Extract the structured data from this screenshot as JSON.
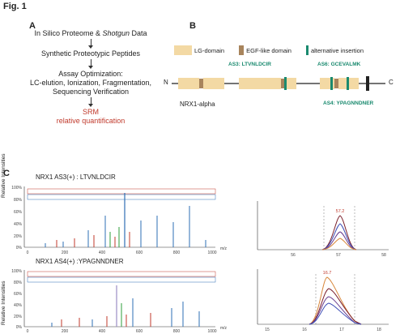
{
  "figure": {
    "title": "Fig. 1"
  },
  "panel_a": {
    "label": "A",
    "steps": [
      {
        "pre": "In Silico Proteome & ",
        "italic": "Shotgun",
        "post": " Data"
      },
      {
        "text": "Synthetic Proteotypic Peptides"
      },
      {
        "text": "Assay Optimization:"
      },
      {
        "text": "LC-elution, Ionization, Fragmentation,"
      },
      {
        "text": "Sequencing Verification"
      }
    ],
    "result_line1": "SRM",
    "result_line2": "relative quantification",
    "result_color": "#c0392b"
  },
  "panel_b": {
    "label": "B",
    "legend": [
      {
        "label": "LG-domain",
        "color": "#f3d9a4"
      },
      {
        "label": "EGF-like domain",
        "color": "#a8845c"
      },
      {
        "label": "alternative insertion",
        "color": "#1a8a6f"
      }
    ],
    "n_term": "N",
    "c_term": "C",
    "protein_name": "NRX1-alpha",
    "as3": "AS3: LTVNLDCIR",
    "as6": "AS6: GCEVALMK",
    "as4": "AS4: YPAGNNDNER"
  },
  "panel_c": {
    "label": "C",
    "spectrum1": {
      "title": "NRX1 AS3(+) : LTVNLDCIR",
      "ylabel": "Relative Intensities",
      "yticks": [
        "100%",
        "80%",
        "60%",
        "40%",
        "20%",
        "0%"
      ],
      "xticks": [
        "0",
        "200",
        "400",
        "600",
        "800",
        "1000"
      ],
      "xunit": "m/z"
    },
    "spectrum2": {
      "title": "NRX1 AS4(+) :YPAGNNDNER",
      "ylabel": "Relative Intensities",
      "yticks": [
        "100%",
        "80%",
        "60%",
        "40%",
        "20%",
        "0%"
      ],
      "xticks": [
        "0",
        "200",
        "400",
        "600",
        "800",
        "1000"
      ],
      "xunit": "m/z"
    },
    "chrom1": {
      "peak_label": "57.2",
      "xticks": [
        "56",
        "57",
        "58"
      ]
    },
    "chrom2": {
      "peak_label": "16.7",
      "xticks": [
        "15",
        "16",
        "17",
        "18"
      ]
    }
  }
}
